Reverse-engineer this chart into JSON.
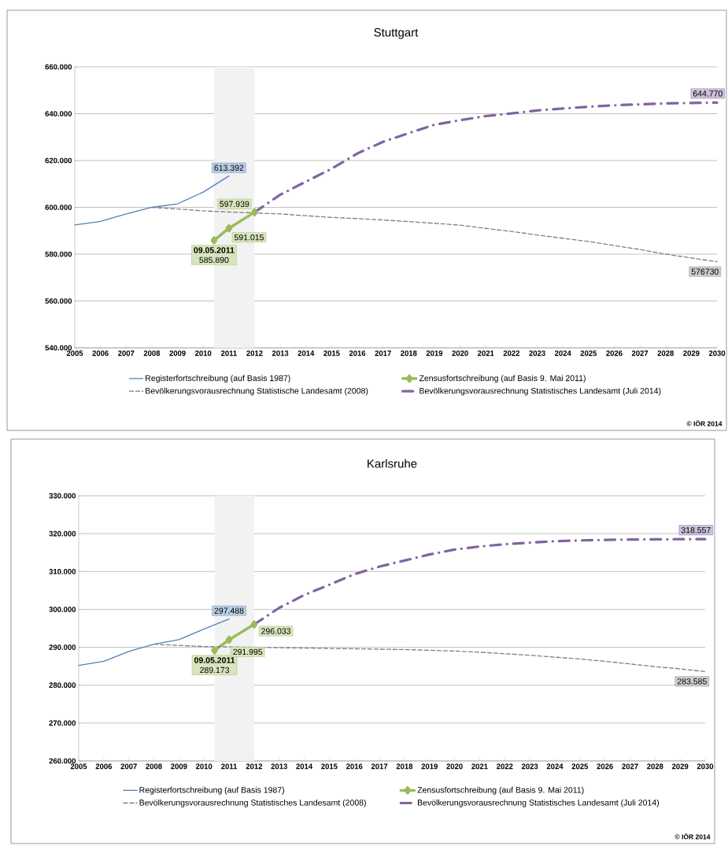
{
  "chart_data": [
    {
      "type": "line",
      "title": "Stuttgart",
      "xlim": [
        2005,
        2030
      ],
      "xticks": [
        2005,
        2006,
        2007,
        2008,
        2009,
        2010,
        2011,
        2012,
        2013,
        2014,
        2015,
        2016,
        2017,
        2018,
        2019,
        2020,
        2021,
        2022,
        2023,
        2024,
        2025,
        2026,
        2027,
        2028,
        2029,
        2030
      ],
      "ylim": [
        540000,
        660000
      ],
      "yticks": [
        {
          "value": 540000,
          "label": "540.000"
        },
        {
          "value": 560000,
          "label": "560.000"
        },
        {
          "value": 580000,
          "label": "580.000"
        },
        {
          "value": 600000,
          "label": "600.000"
        },
        {
          "value": 620000,
          "label": "620.000"
        },
        {
          "value": 640000,
          "label": "640.000"
        },
        {
          "value": 660000,
          "label": "660.000"
        }
      ],
      "grid": "y",
      "legend": "bottom",
      "bands": [
        {
          "axis": "x",
          "from": 2010.42,
          "to": 2012,
          "color": "#f2f2f2"
        }
      ],
      "series": [
        {
          "name": "Registerfortschreibung (auf Basis 1987)",
          "color": "#4f81bd",
          "line_style": "solid",
          "marker": "none",
          "x": [
            2005,
            2006,
            2007,
            2008,
            2009,
            2010,
            2011
          ],
          "values": [
            592500,
            594000,
            597200,
            600000,
            601500,
            606500,
            613392
          ],
          "value_labels": [
            null,
            null,
            null,
            null,
            null,
            null,
            "613.392"
          ]
        },
        {
          "name": "Zensusfortschreibung (auf Basis 9. Mai 2011)",
          "color": "#9bbb59",
          "line_style": "solid",
          "marker": "diamond",
          "x": [
            2010.42,
            2011,
            2012
          ],
          "values": [
            585890,
            591015,
            597939
          ],
          "value_labels": [
            "585.890",
            "591.015",
            "597.939"
          ]
        },
        {
          "name": "Bevölkerungsvorausrechnung Statistische Landesamt (2008)",
          "color": "#7f7f7f",
          "line_style": "dashed",
          "marker": "none",
          "x": [
            2008,
            2009,
            2010,
            2011,
            2012,
            2013,
            2014,
            2015,
            2016,
            2017,
            2018,
            2019,
            2020,
            2021,
            2022,
            2023,
            2024,
            2025,
            2026,
            2027,
            2028,
            2029,
            2030
          ],
          "values": [
            600000,
            599300,
            598500,
            598000,
            597600,
            597200,
            596400,
            595700,
            595200,
            594600,
            593900,
            593200,
            592400,
            591000,
            589700,
            588200,
            586800,
            585400,
            583700,
            582000,
            580000,
            578400,
            576730
          ],
          "value_labels": [
            null,
            null,
            null,
            null,
            null,
            null,
            null,
            null,
            null,
            null,
            null,
            null,
            null,
            null,
            null,
            null,
            null,
            null,
            null,
            null,
            null,
            null,
            "576730"
          ]
        },
        {
          "name": "Bevölkerungsvorausrechnung Statistisches Landesamt (Juli 2014)",
          "color": "#8064a2",
          "line_style": "dashdot",
          "marker": "none",
          "x": [
            2012,
            2013,
            2014,
            2015,
            2016,
            2017,
            2018,
            2019,
            2020,
            2021,
            2022,
            2023,
            2024,
            2025,
            2026,
            2027,
            2028,
            2029,
            2030
          ],
          "values": [
            597939,
            605400,
            611000,
            616500,
            623000,
            628000,
            631700,
            635300,
            637200,
            639000,
            640100,
            641400,
            642200,
            643000,
            643600,
            644000,
            644400,
            644600,
            644770
          ],
          "value_labels": [
            null,
            null,
            null,
            null,
            null,
            null,
            null,
            null,
            null,
            null,
            null,
            null,
            null,
            null,
            null,
            null,
            null,
            null,
            "644.770"
          ]
        }
      ],
      "annotations": [
        {
          "text": "09.05.2011",
          "x": 2010.42,
          "y": 585890
        },
        "© IÖR 2014"
      ]
    },
    {
      "type": "line",
      "title": "Karlsruhe",
      "xlim": [
        2005,
        2030
      ],
      "xticks": [
        2005,
        2006,
        2007,
        2008,
        2009,
        2010,
        2011,
        2012,
        2013,
        2014,
        2015,
        2016,
        2017,
        2018,
        2019,
        2020,
        2021,
        2022,
        2023,
        2024,
        2025,
        2026,
        2027,
        2028,
        2029,
        2030
      ],
      "ylim": [
        260000,
        330000
      ],
      "yticks": [
        {
          "value": 260000,
          "label": "260.000"
        },
        {
          "value": 270000,
          "label": "270.000"
        },
        {
          "value": 280000,
          "label": "280.000"
        },
        {
          "value": 290000,
          "label": "290.000"
        },
        {
          "value": 300000,
          "label": "300.000"
        },
        {
          "value": 310000,
          "label": "310.000"
        },
        {
          "value": 320000,
          "label": "320.000"
        },
        {
          "value": 330000,
          "label": "330.000"
        }
      ],
      "grid": "y",
      "legend": "bottom",
      "bands": [
        {
          "axis": "x",
          "from": 2010.42,
          "to": 2012,
          "color": "#f2f2f2"
        }
      ],
      "series": [
        {
          "name": "Registerfortschreibung (auf Basis 1987)",
          "color": "#4f81bd",
          "line_style": "solid",
          "marker": "none",
          "x": [
            2005,
            2006,
            2007,
            2008,
            2009,
            2010,
            2011
          ],
          "values": [
            285200,
            286300,
            288900,
            290800,
            292000,
            294800,
            297488
          ],
          "value_labels": [
            null,
            null,
            null,
            null,
            null,
            null,
            "297.488"
          ]
        },
        {
          "name": "Zensusfortschreibung (auf Basis 9. Mai 2011)",
          "color": "#9bbb59",
          "line_style": "solid",
          "marker": "diamond",
          "x": [
            2010.42,
            2011,
            2012
          ],
          "values": [
            289173,
            291995,
            296033
          ],
          "value_labels": [
            "289.173",
            "291.995",
            "296.033"
          ]
        },
        {
          "name": "Bevölkerungsvorausrechnung Statistisches Landesamt (2008)",
          "color": "#7f7f7f",
          "line_style": "dashed",
          "marker": "none",
          "x": [
            2008,
            2009,
            2010,
            2011,
            2012,
            2013,
            2014,
            2015,
            2016,
            2017,
            2018,
            2019,
            2020,
            2021,
            2022,
            2023,
            2024,
            2025,
            2026,
            2027,
            2028,
            2029,
            2030
          ],
          "values": [
            290800,
            290500,
            290200,
            290100,
            290000,
            289900,
            289800,
            289700,
            289600,
            289500,
            289400,
            289200,
            289000,
            288700,
            288300,
            287900,
            287400,
            286900,
            286300,
            285600,
            284900,
            284300,
            283585
          ],
          "value_labels": [
            null,
            null,
            null,
            null,
            null,
            null,
            null,
            null,
            null,
            null,
            null,
            null,
            null,
            null,
            null,
            null,
            null,
            null,
            null,
            null,
            null,
            null,
            "283.585"
          ]
        },
        {
          "name": "Bevölkerungsvorausrechnung Statistisches Landesamt (Juli 2014)",
          "color": "#8064a2",
          "line_style": "dashdot",
          "marker": "none",
          "x": [
            2012,
            2013,
            2014,
            2015,
            2016,
            2017,
            2018,
            2019,
            2020,
            2021,
            2022,
            2023,
            2024,
            2025,
            2026,
            2027,
            2028,
            2029,
            2030
          ],
          "values": [
            296033,
            300400,
            303800,
            306500,
            309300,
            311300,
            312900,
            314500,
            315800,
            316600,
            317200,
            317600,
            318000,
            318200,
            318350,
            318450,
            318500,
            318530,
            318557
          ],
          "value_labels": [
            null,
            null,
            null,
            null,
            null,
            null,
            null,
            null,
            null,
            null,
            null,
            null,
            null,
            null,
            null,
            null,
            null,
            null,
            "318.557"
          ]
        }
      ],
      "annotations": [
        {
          "text": "09.05.2011",
          "x": 2010.42,
          "y": 289173
        },
        "© IÖR 2014"
      ]
    }
  ]
}
